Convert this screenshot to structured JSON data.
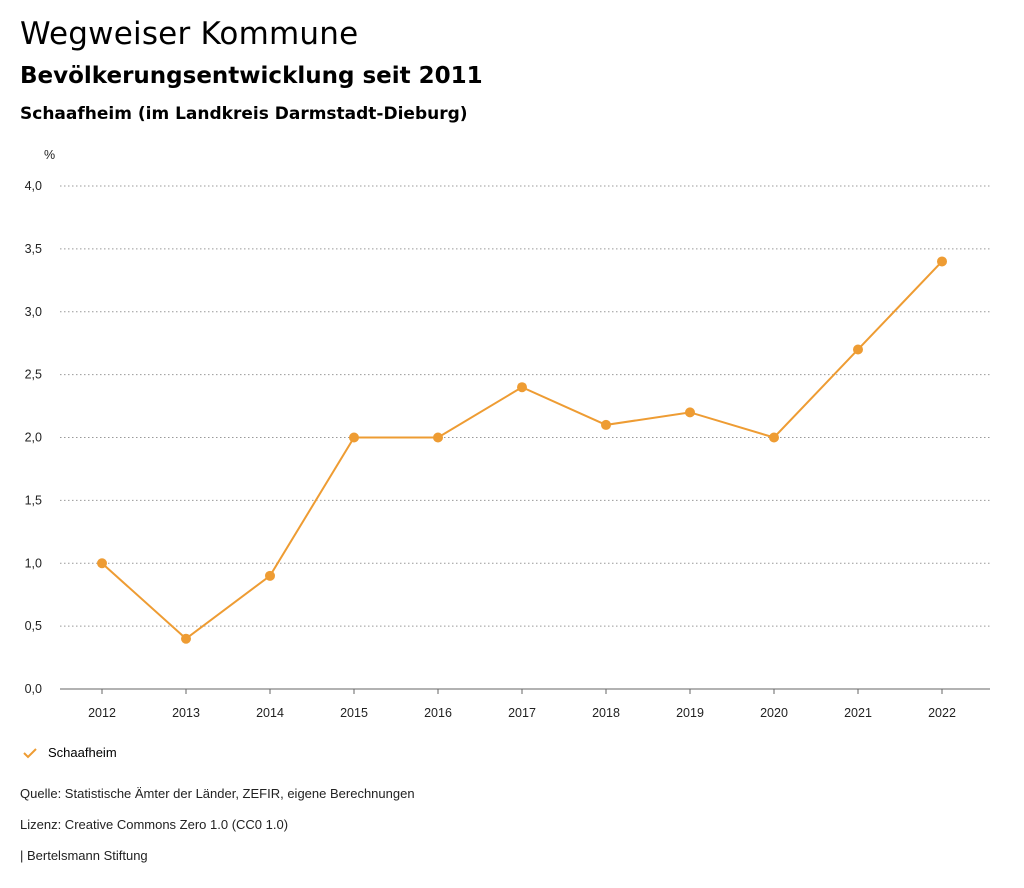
{
  "header": {
    "title": "Wegweiser Kommune",
    "subtitle": "Bevölkerungsentwicklung seit 2011",
    "region": "Schaafheim (im Landkreis Darmstadt-Dieburg)"
  },
  "chart_data": {
    "type": "line",
    "unit": "%",
    "x": [
      "2012",
      "2013",
      "2014",
      "2015",
      "2016",
      "2017",
      "2018",
      "2019",
      "2020",
      "2021",
      "2022"
    ],
    "series": [
      {
        "name": "Schaafheim",
        "values": [
          1.0,
          0.4,
          0.9,
          2.0,
          2.0,
          2.4,
          2.1,
          2.2,
          2.0,
          2.7,
          3.4
        ],
        "color": "#ee9c33"
      }
    ],
    "ylim": [
      0,
      4
    ],
    "yticks": [
      "0,0",
      "0,5",
      "1,0",
      "1,5",
      "2,0",
      "2,5",
      "3,0",
      "3,5",
      "4,0"
    ],
    "ytick_values": [
      0,
      0.5,
      1,
      1.5,
      2,
      2.5,
      3,
      3.5,
      4
    ],
    "grid": "horizontal dotted",
    "legend": "bottom-left"
  },
  "legend": {
    "label": "Schaafheim",
    "icon": "check-icon"
  },
  "footer": {
    "source": "Quelle: Statistische Ämter der Länder, ZEFIR, eigene Berechnungen",
    "license": "Lizenz: Creative Commons Zero 1.0 (CC0 1.0)",
    "publisher": "| Bertelsmann Stiftung"
  }
}
